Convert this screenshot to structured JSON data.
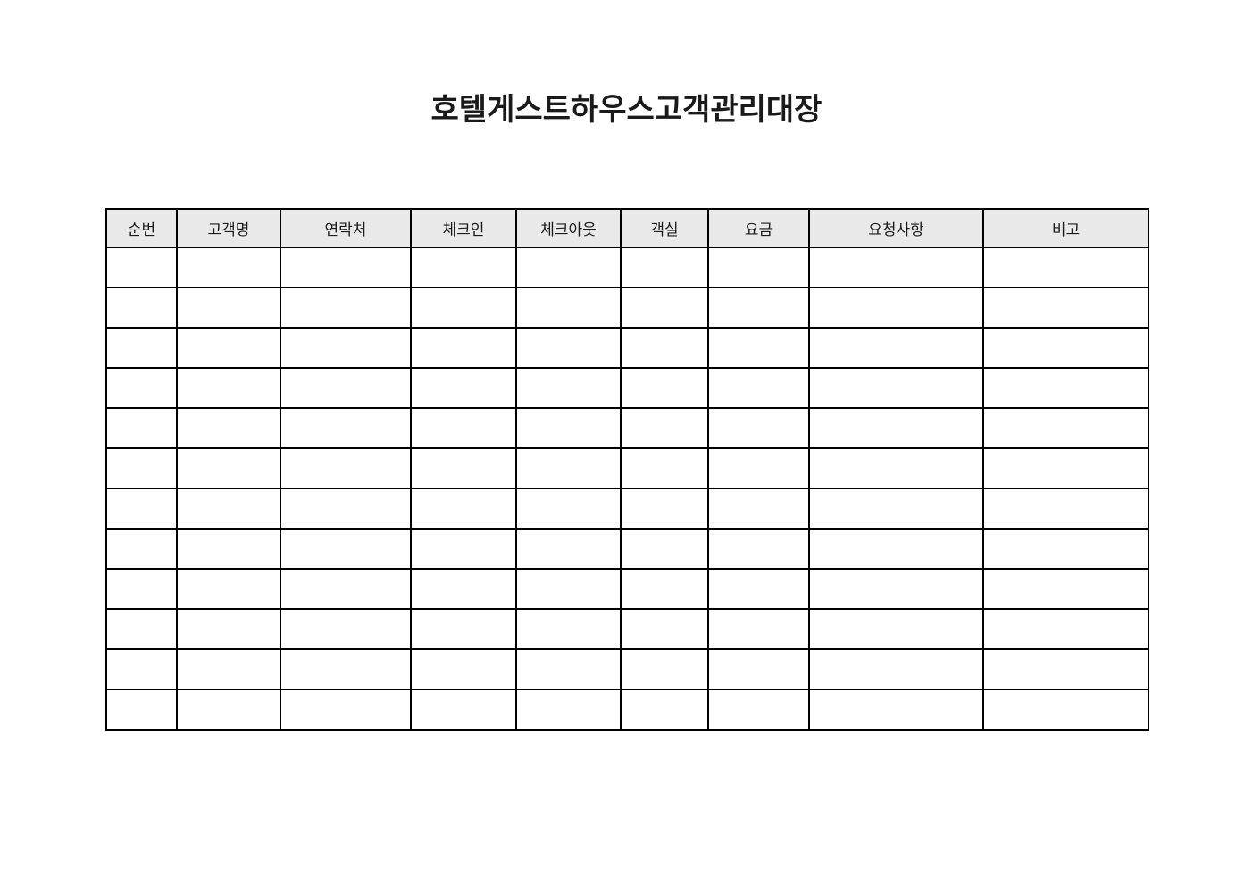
{
  "page": {
    "title": "호텔게스트하우스고객관리대장"
  },
  "table": {
    "columns": [
      {
        "label": "순번"
      },
      {
        "label": "고객명"
      },
      {
        "label": "연락처"
      },
      {
        "label": "체크인"
      },
      {
        "label": "체크아웃"
      },
      {
        "label": "객실"
      },
      {
        "label": "요금"
      },
      {
        "label": "요청사항"
      },
      {
        "label": "비고"
      }
    ],
    "empty_row_count": 12
  },
  "colors": {
    "header_bg": "#e9e9e9",
    "border": "#000000",
    "text": "#1a1a1a",
    "page_bg": "#ffffff"
  }
}
